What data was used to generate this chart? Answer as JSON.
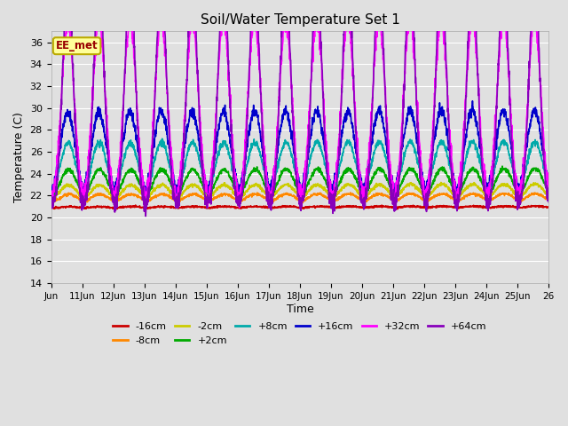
{
  "title": "Soil/Water Temperature Set 1",
  "xlabel": "Time",
  "ylabel": "Temperature (C)",
  "ylim": [
    14,
    37
  ],
  "yticks": [
    14,
    16,
    18,
    20,
    22,
    24,
    26,
    28,
    30,
    32,
    34,
    36
  ],
  "background_color": "#e0e0e0",
  "plot_bg_color": "#e0e0e0",
  "grid_color": "#ffffff",
  "annotation_text": "EE_met",
  "annotation_box_color": "#ffff99",
  "annotation_border_color": "#bbaa00",
  "annotation_text_color": "#990000",
  "series": [
    {
      "label": "-16cm",
      "color": "#cc0000",
      "linewidth": 1.2
    },
    {
      "label": "-8cm",
      "color": "#ff8800",
      "linewidth": 1.2
    },
    {
      "label": "-2cm",
      "color": "#cccc00",
      "linewidth": 1.2
    },
    {
      "label": "+2cm",
      "color": "#00aa00",
      "linewidth": 1.2
    },
    {
      "label": "+8cm",
      "color": "#00aaaa",
      "linewidth": 1.2
    },
    {
      "label": "+16cm",
      "color": "#0000cc",
      "linewidth": 1.2
    },
    {
      "label": "+32cm",
      "color": "#ff00ff",
      "linewidth": 1.2
    },
    {
      "label": "+64cm",
      "color": "#8800bb",
      "linewidth": 1.2
    }
  ],
  "xtick_labels": [
    "Jun",
    "11Jun",
    "12Jun",
    "13Jun",
    "14Jun",
    "15Jun",
    "16Jun",
    "17Jun",
    "18Jun",
    "19Jun",
    "20Jun",
    "21Jun",
    "22Jun",
    "23Jun",
    "24Jun",
    "25Jun",
    "26"
  ],
  "figsize": [
    6.4,
    4.8
  ],
  "dpi": 100
}
